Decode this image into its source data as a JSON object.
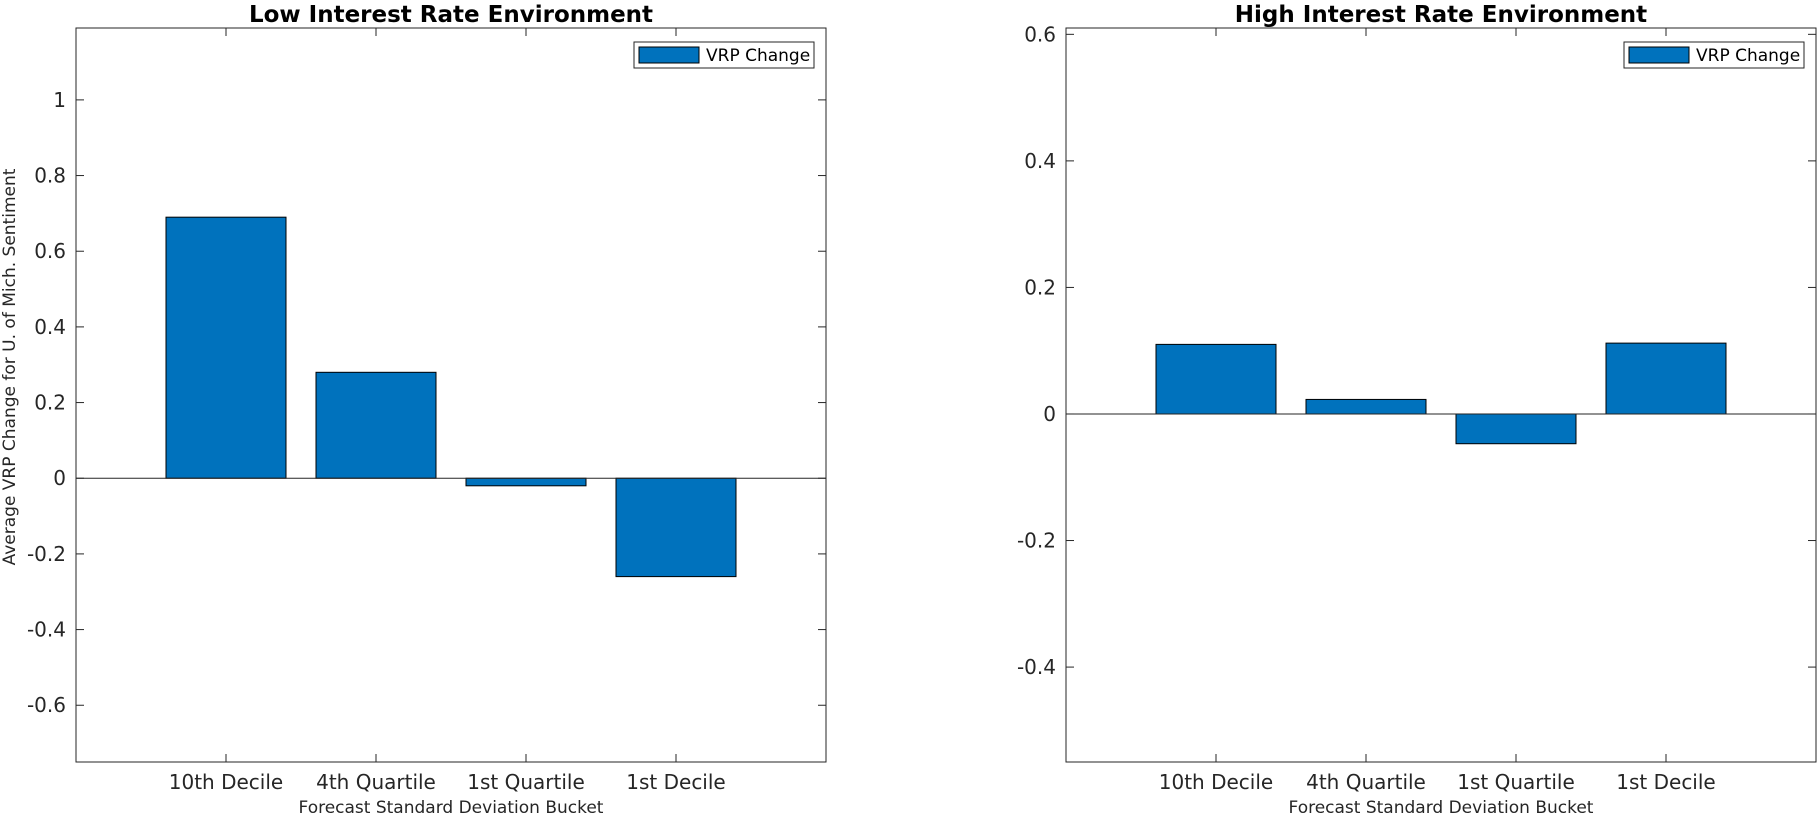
{
  "chart_data": [
    {
      "type": "bar",
      "title": "Low Interest Rate Environment",
      "xlabel": "Forecast Standard Deviation Bucket",
      "ylabel": "Average VRP Change for U. of Mich. Sentiment",
      "categories": [
        "10th Decile",
        "4th Quartile",
        "1st Quartile",
        "1st Decile"
      ],
      "series": [
        {
          "name": "VRP Change",
          "values": [
            0.69,
            0.28,
            -0.02,
            -0.26
          ]
        }
      ],
      "ylim": [
        -0.75,
        1.19
      ],
      "yticks": [
        -0.6,
        -0.4,
        -0.2,
        0,
        0.2,
        0.4,
        0.6,
        0.8,
        1
      ],
      "ytick_labels": [
        "-0.6",
        "-0.4",
        "-0.2",
        "0",
        "0.2",
        "0.4",
        "0.6",
        "0.8",
        "1"
      ],
      "legend_position": "top-right",
      "grid": false
    },
    {
      "type": "bar",
      "title": "High Interest Rate Environment",
      "xlabel": "Forecast Standard Deviation Bucket",
      "ylabel": "",
      "categories": [
        "10th Decile",
        "4th Quartile",
        "1st Quartile",
        "1st Decile"
      ],
      "series": [
        {
          "name": "VRP Change",
          "values": [
            0.11,
            0.023,
            -0.047,
            0.112
          ]
        }
      ],
      "ylim": [
        -0.55,
        0.61
      ],
      "yticks": [
        -0.4,
        -0.2,
        0,
        0.2,
        0.4,
        0.6
      ],
      "ytick_labels": [
        "-0.4",
        "-0.2",
        "0",
        "0.2",
        "0.4",
        "0.6"
      ],
      "legend_position": "top-right",
      "grid": false
    }
  ],
  "colors": {
    "bar_fill": "#0072BD",
    "bar_edge": "#000000",
    "axis": "#262626",
    "background": "#ffffff"
  }
}
